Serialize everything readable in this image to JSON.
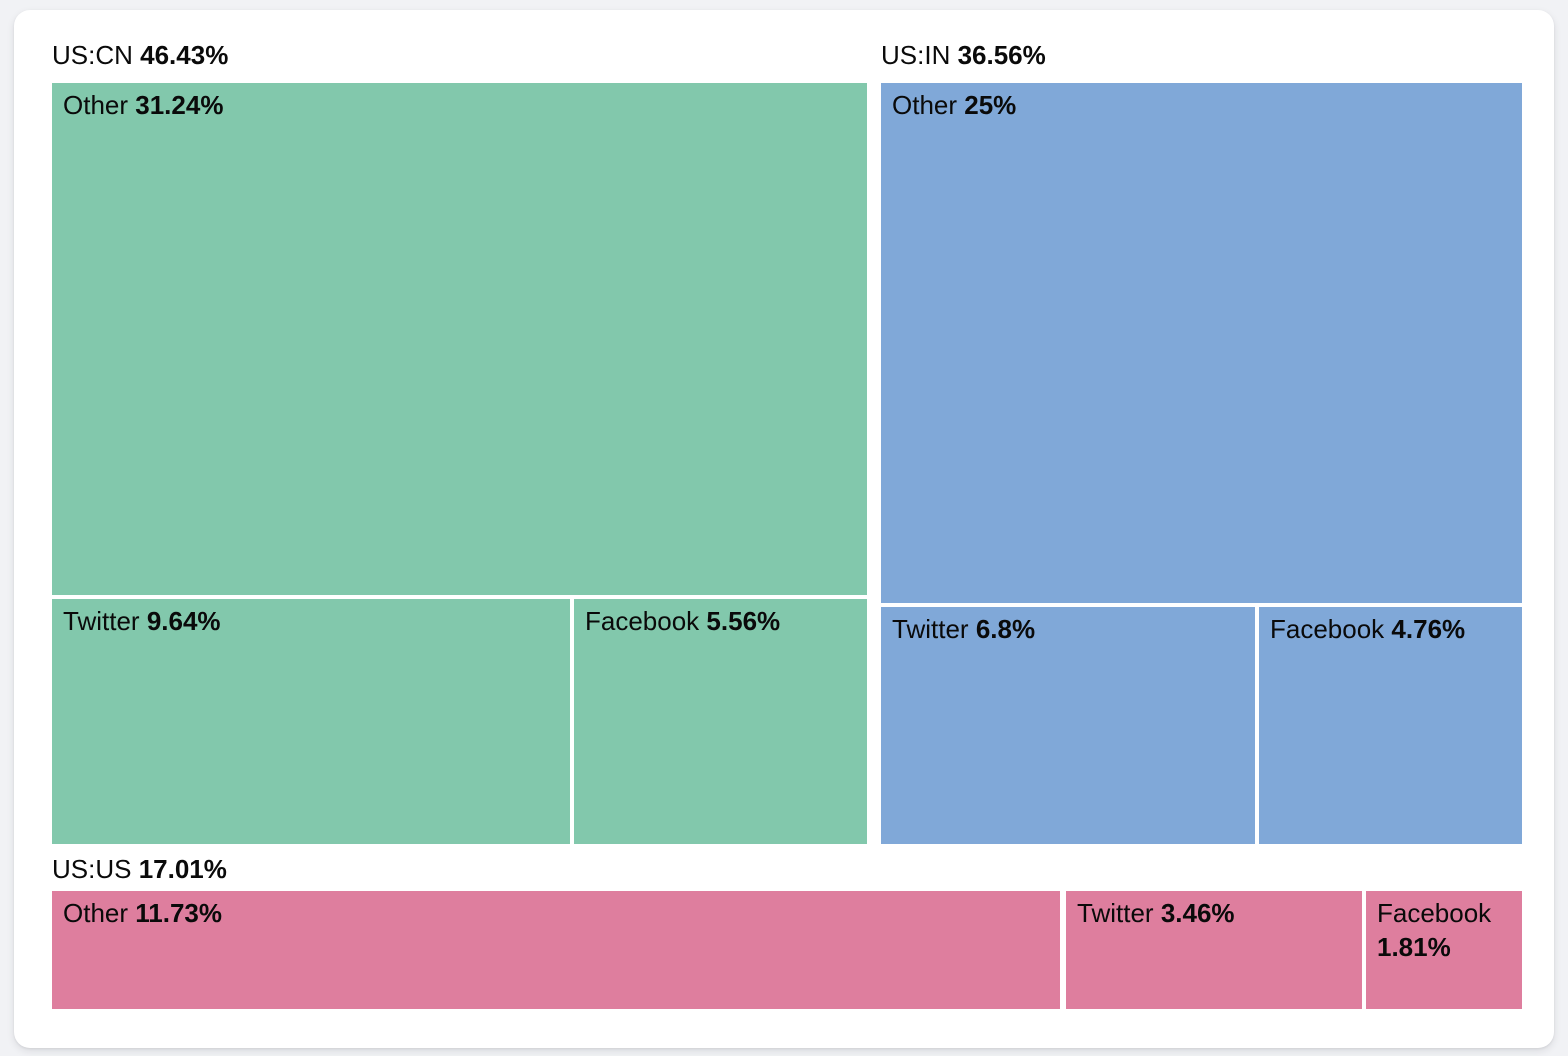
{
  "chart_data": {
    "type": "treemap",
    "unit": "%",
    "text_color": "#0a0a0a",
    "background": "#ffffff",
    "groups": [
      {
        "label": "US:CN",
        "value": 46.43,
        "value_label": "46.43%",
        "color": "#82C8AC",
        "children": [
          {
            "label": "Other",
            "value": 31.24,
            "value_label": "31.24%"
          },
          {
            "label": "Twitter",
            "value": 9.64,
            "value_label": "9.64%"
          },
          {
            "label": "Facebook",
            "value": 5.56,
            "value_label": "5.56%"
          }
        ]
      },
      {
        "label": "US:IN",
        "value": 36.56,
        "value_label": "36.56%",
        "color": "#80A8D8",
        "children": [
          {
            "label": "Other",
            "value": 25,
            "value_label": "25%"
          },
          {
            "label": "Twitter",
            "value": 6.8,
            "value_label": "6.8%"
          },
          {
            "label": "Facebook",
            "value": 4.76,
            "value_label": "4.76%"
          }
        ]
      },
      {
        "label": "US:US",
        "value": 17.01,
        "value_label": "17.01%",
        "color": "#DE7E9E",
        "children": [
          {
            "label": "Other",
            "value": 11.73,
            "value_label": "11.73%"
          },
          {
            "label": "Twitter",
            "value": 3.46,
            "value_label": "3.46%"
          },
          {
            "label": "Facebook",
            "value": 1.81,
            "value_label": "1.81%"
          }
        ]
      }
    ]
  }
}
